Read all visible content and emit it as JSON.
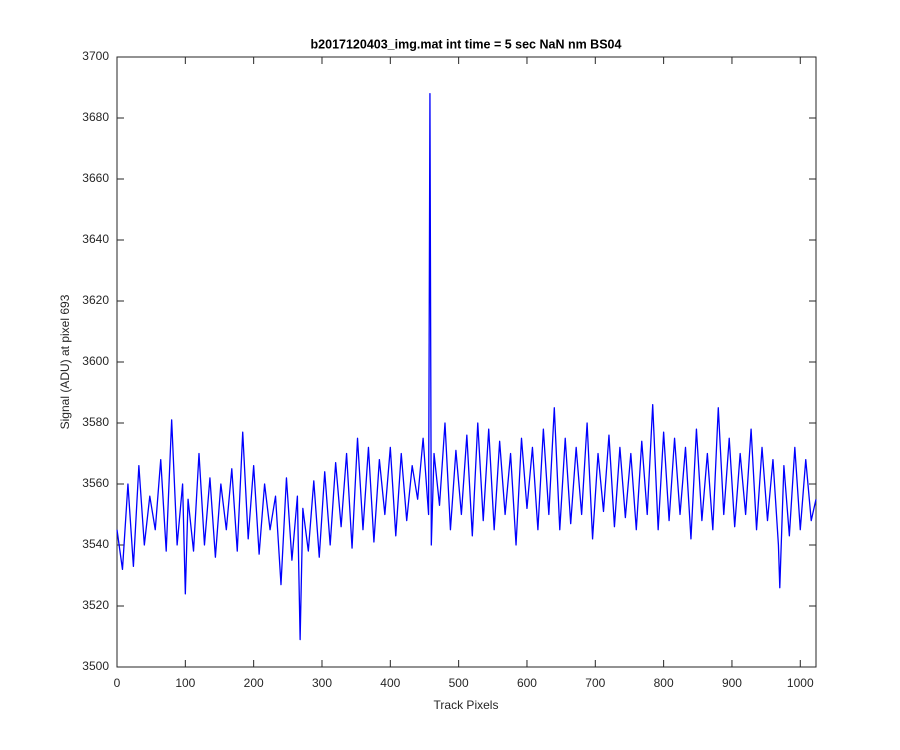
{
  "chart_data": {
    "type": "line",
    "title": "b2017120403_img.mat int time = 5 sec  NaN nm BS04",
    "x_label": "Track Pixels",
    "y_label": "Signal (ADU) at pixel 693",
    "xlim": [
      0,
      1023
    ],
    "ylim": [
      3500,
      3700
    ],
    "xticks": [
      0,
      100,
      200,
      300,
      400,
      500,
      600,
      700,
      800,
      900,
      1000
    ],
    "yticks": [
      3500,
      3520,
      3540,
      3560,
      3580,
      3600,
      3620,
      3640,
      3660,
      3680,
      3700
    ],
    "grid": false,
    "x": [
      0,
      8,
      16,
      24,
      32,
      40,
      48,
      56,
      64,
      72,
      80,
      88,
      96,
      100,
      104,
      112,
      120,
      128,
      136,
      144,
      152,
      160,
      168,
      176,
      184,
      192,
      200,
      208,
      216,
      224,
      232,
      240,
      248,
      256,
      264,
      268,
      272,
      280,
      288,
      296,
      304,
      312,
      320,
      328,
      336,
      344,
      352,
      360,
      368,
      376,
      384,
      392,
      400,
      408,
      416,
      424,
      432,
      440,
      448,
      456,
      458,
      460,
      464,
      472,
      480,
      488,
      496,
      504,
      512,
      520,
      528,
      536,
      544,
      552,
      560,
      568,
      576,
      584,
      592,
      600,
      608,
      616,
      624,
      632,
      640,
      648,
      656,
      664,
      672,
      680,
      688,
      696,
      704,
      712,
      720,
      728,
      736,
      744,
      752,
      760,
      768,
      776,
      784,
      792,
      800,
      808,
      816,
      824,
      832,
      840,
      848,
      856,
      864,
      872,
      880,
      888,
      896,
      904,
      912,
      920,
      928,
      936,
      944,
      952,
      960,
      968,
      970,
      976,
      984,
      992,
      1000,
      1008,
      1016,
      1023
    ],
    "series": [
      {
        "color": "#0000ff",
        "values": [
          3545,
          3532,
          3560,
          3533,
          3566,
          3540,
          3556,
          3545,
          3568,
          3538,
          3581,
          3540,
          3560,
          3524,
          3555,
          3538,
          3570,
          3540,
          3562,
          3536,
          3560,
          3545,
          3565,
          3538,
          3577,
          3542,
          3566,
          3537,
          3560,
          3545,
          3556,
          3527,
          3562,
          3535,
          3556,
          3509,
          3552,
          3538,
          3561,
          3536,
          3564,
          3540,
          3567,
          3546,
          3570,
          3539,
          3575,
          3545,
          3572,
          3541,
          3568,
          3550,
          3572,
          3543,
          3570,
          3548,
          3566,
          3555,
          3575,
          3550,
          3688,
          3540,
          3570,
          3553,
          3580,
          3545,
          3571,
          3550,
          3576,
          3543,
          3580,
          3548,
          3578,
          3545,
          3574,
          3550,
          3570,
          3540,
          3575,
          3552,
          3572,
          3545,
          3578,
          3550,
          3585,
          3545,
          3575,
          3547,
          3572,
          3550,
          3580,
          3542,
          3570,
          3551,
          3576,
          3546,
          3572,
          3549,
          3570,
          3545,
          3574,
          3550,
          3586,
          3545,
          3577,
          3548,
          3575,
          3550,
          3572,
          3542,
          3578,
          3548,
          3570,
          3545,
          3585,
          3550,
          3575,
          3546,
          3570,
          3550,
          3578,
          3545,
          3572,
          3548,
          3568,
          3540,
          3526,
          3566,
          3543,
          3572,
          3545,
          3568,
          3548,
          3555
        ]
      }
    ]
  }
}
